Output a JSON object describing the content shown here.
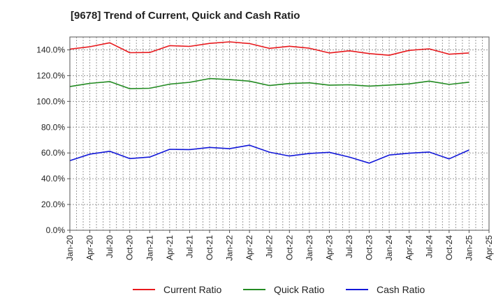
{
  "chart_data": {
    "type": "line",
    "title": "[9678]  Trend of Current, Quick and Cash Ratio",
    "xlabel": "",
    "ylabel": "",
    "ylim": [
      0,
      150
    ],
    "yticks": [
      0,
      20,
      40,
      60,
      80,
      100,
      120,
      140
    ],
    "ytick_labels": [
      "0.0%",
      "20.0%",
      "40.0%",
      "60.0%",
      "80.0%",
      "100.0%",
      "120.0%",
      "140.0%"
    ],
    "grid": true,
    "legend_position": "bottom",
    "x_tick_labels": [
      "Jan-20",
      "Apr-20",
      "Jul-20",
      "Oct-20",
      "Jan-21",
      "Apr-21",
      "Jul-21",
      "Oct-21",
      "Jan-22",
      "Apr-22",
      "Jul-22",
      "Oct-22",
      "Jan-23",
      "Apr-23",
      "Jul-23",
      "Oct-23",
      "Jan-24",
      "Apr-24",
      "Jul-24",
      "Oct-24",
      "Jan-25",
      "Apr-25"
    ],
    "x": [
      "Jan-20",
      "Apr-20",
      "Jul-20",
      "Oct-20",
      "Jan-21",
      "Apr-21",
      "Jul-21",
      "Oct-21",
      "Jan-22",
      "Apr-22",
      "Jul-22",
      "Oct-22",
      "Jan-23",
      "Apr-23",
      "Jul-23",
      "Oct-23",
      "Jan-24",
      "Apr-24",
      "Jul-24",
      "Oct-24",
      "Jan-25"
    ],
    "series": [
      {
        "name": "Current Ratio",
        "color": "#e8191d",
        "values": [
          140.6,
          142.4,
          145.5,
          137.8,
          138.0,
          143.3,
          142.7,
          145.0,
          146.2,
          144.9,
          141.2,
          142.8,
          141.3,
          137.6,
          139.3,
          137.1,
          135.8,
          139.6,
          140.8,
          136.6,
          137.6
        ]
      },
      {
        "name": "Quick Ratio",
        "color": "#238b22",
        "values": [
          111.5,
          114.0,
          115.4,
          109.9,
          110.2,
          113.4,
          114.8,
          117.7,
          116.9,
          115.7,
          112.3,
          113.9,
          114.4,
          112.6,
          112.9,
          111.9,
          112.7,
          113.6,
          115.7,
          113.2,
          114.9
        ]
      },
      {
        "name": "Cash Ratio",
        "color": "#1218d9",
        "values": [
          54.0,
          59.1,
          61.3,
          55.6,
          56.8,
          62.8,
          62.6,
          64.3,
          63.3,
          66.0,
          60.6,
          57.6,
          59.6,
          60.5,
          56.8,
          52.1,
          58.4,
          59.8,
          60.7,
          55.4,
          62.3
        ]
      }
    ]
  }
}
